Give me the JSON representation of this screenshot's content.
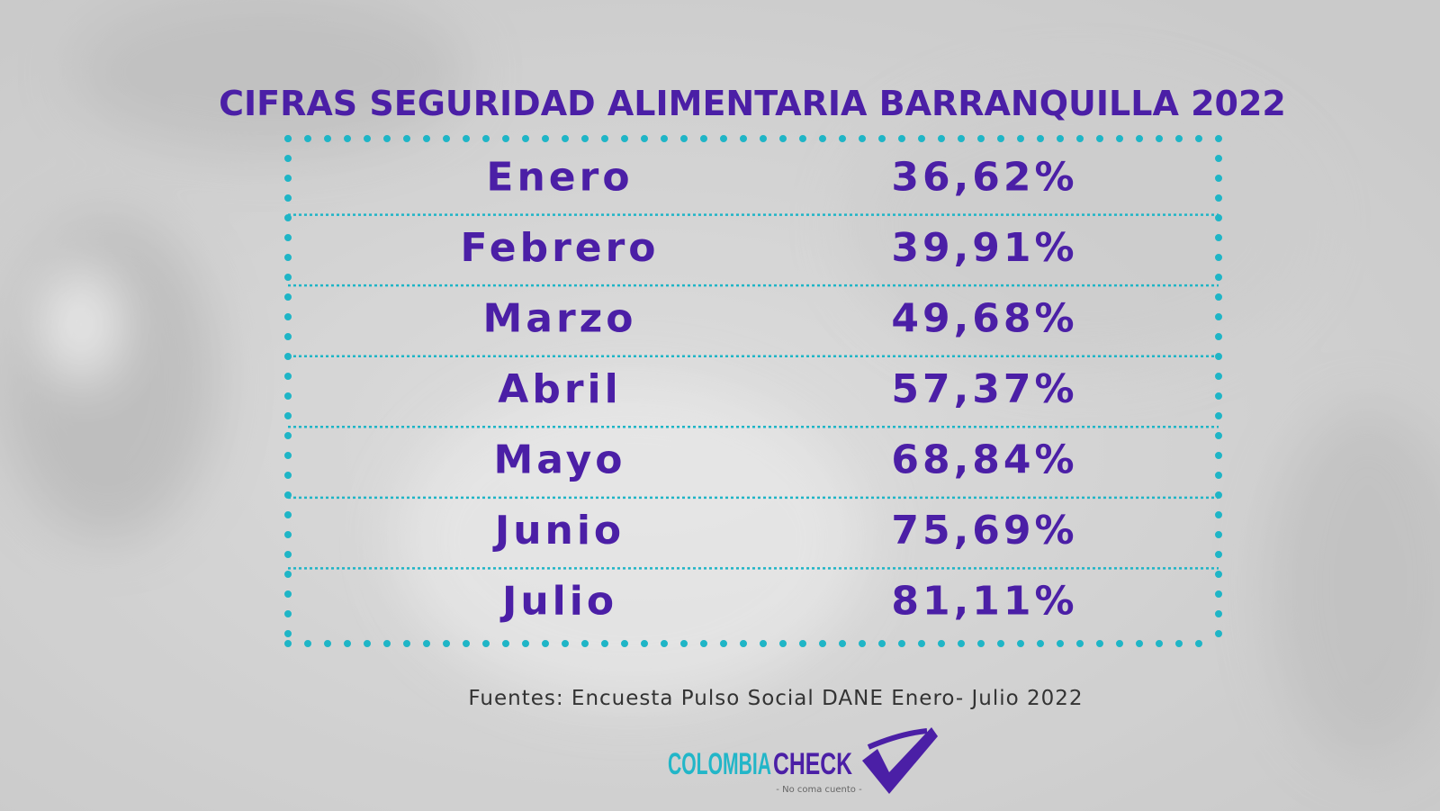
{
  "header": {
    "title": "CIFRAS SEGURIDAD ALIMENTARIA BARRANQUILLA 2022"
  },
  "table": {
    "rows": [
      [
        "Enero",
        "36,62%"
      ],
      [
        "Febrero",
        "39,91%"
      ],
      [
        "Marzo",
        "49,68%"
      ],
      [
        "Abril",
        "57,37%"
      ],
      [
        "Mayo",
        "68,84%"
      ],
      [
        "Junio",
        "75,69%"
      ],
      [
        "Julio",
        "81,11%"
      ]
    ]
  },
  "footer": {
    "source": "Fuentes: Encuesta Pulso Social DANE  Enero- Julio 2022"
  },
  "logo": {
    "part1": "COLOMBIA",
    "part2": "CHECK",
    "tagline": "- No coma cuento -"
  }
}
